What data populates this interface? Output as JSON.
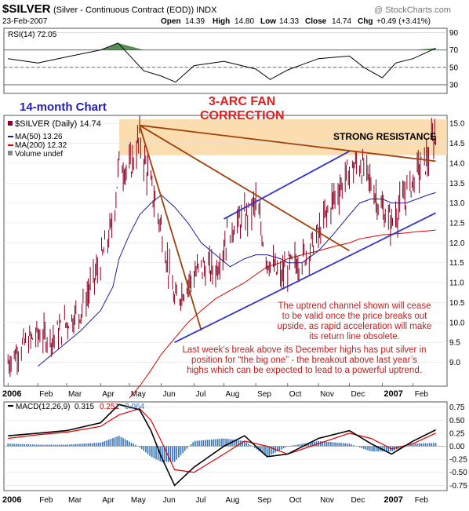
{
  "header": {
    "symbol": "$SILVER",
    "description": "(Silver - Continuous Contract (EOD)) INDX",
    "watermark": "@ StockCharts.com",
    "date": "23-Feb-2007",
    "open_label": "Open",
    "open": "14.39",
    "high_label": "High",
    "high": "14.80",
    "low_label": "Low",
    "low": "14.33",
    "close_label": "Close",
    "close": "14.74",
    "chg_label": "Chg",
    "chg": "+0.49 (+3.41%)"
  },
  "rsi": {
    "label": "RSI(14) 72.05",
    "ticks": [
      "90",
      "70",
      "50",
      "30"
    ],
    "overbought": 70,
    "oversold": 30,
    "ylim": [
      20,
      95
    ]
  },
  "price_legend": {
    "series": "$SILVER (Daily) 14.74",
    "ma50": "MA(50) 13.26",
    "ma200": "MA(200) 12.32",
    "volume": "Volume undef"
  },
  "annotations": {
    "chart_label": "14-month Chart",
    "fan_title_1": "3-ARC FAN",
    "fan_title_2": "CORRECTION",
    "resistance": "STRONG RESISTANCE",
    "channel_note": [
      "The uptrend channel shown will cease",
      "to be valid once the price breaks out",
      "upside, as rapid acceleration will make",
      "its return line obsolete."
    ],
    "breakout_note": [
      "Last week’s break above its December highs has put silver in",
      "position for “the big one” - the breakout above last year’s",
      "highs which can be expected to lead to a powerful uptrend."
    ]
  },
  "macd": {
    "label_prefix": "MACD(12,26,9)",
    "macd_val": "0.315",
    "signal_val": "0.251",
    "hist_val": "0.064",
    "ticks": [
      "0.75",
      "0.50",
      "0.25",
      "0.00",
      "-0.25",
      "-0.50",
      "-0.75"
    ],
    "ylim": [
      -0.85,
      0.85
    ]
  },
  "x_axis": {
    "labels": [
      "2006",
      "Feb",
      "Mar",
      "Apr",
      "May",
      "Jun",
      "Jul",
      "Aug",
      "Sep",
      "Oct",
      "Nov",
      "Dec",
      "2007",
      "Feb"
    ]
  },
  "colors": {
    "price": "#8b0020",
    "ma50": "#1a1aa0",
    "ma200": "#e00000",
    "channel": "#3333cc",
    "fan": "#a0400a",
    "resistance_band": "#fbd9a6",
    "annotation_text": "#c02020",
    "title_text": "#e02020",
    "label_blue": "#2020c0",
    "macd_hist": "#3070c0"
  },
  "chart_data": [
    {
      "type": "line",
      "name": "RSI(14)",
      "x": [
        "2006-01-03",
        "2006-02-01",
        "2006-03-01",
        "2006-04-03",
        "2006-04-20",
        "2006-05-15",
        "2006-06-01",
        "2006-06-15",
        "2006-07-03",
        "2006-08-01",
        "2006-09-01",
        "2006-09-15",
        "2006-10-02",
        "2006-11-01",
        "2006-12-01",
        "2006-12-15",
        "2007-01-02",
        "2007-01-15",
        "2007-02-01",
        "2007-02-23"
      ],
      "y": [
        60,
        55,
        62,
        70,
        78,
        46,
        40,
        33,
        52,
        57,
        48,
        36,
        47,
        60,
        63,
        50,
        38,
        55,
        60,
        72.05
      ],
      "ylim": [
        20,
        95
      ]
    },
    {
      "type": "line",
      "title": "$SILVER (Daily) 14.74",
      "x": [
        "2006-01-03",
        "2006-01-16",
        "2006-02-01",
        "2006-02-15",
        "2006-03-01",
        "2006-03-15",
        "2006-04-03",
        "2006-04-15",
        "2006-04-21",
        "2006-05-01",
        "2006-05-11",
        "2006-05-22",
        "2006-06-01",
        "2006-06-14",
        "2006-06-27",
        "2006-07-10",
        "2006-07-24",
        "2006-08-07",
        "2006-08-21",
        "2006-09-01",
        "2006-09-12",
        "2006-09-25",
        "2006-10-02",
        "2006-10-16",
        "2006-11-01",
        "2006-11-15",
        "2006-12-01",
        "2006-12-11",
        "2006-12-22",
        "2007-01-02",
        "2007-01-11",
        "2007-01-25",
        "2007-02-05",
        "2007-02-15",
        "2007-02-23"
      ],
      "series": [
        {
          "name": "$SILVER",
          "values": [
            9.0,
            9.4,
            9.7,
            9.6,
            10.0,
            10.3,
            11.5,
            12.5,
            14.0,
            13.8,
            14.6,
            13.4,
            12.4,
            10.5,
            11.0,
            11.4,
            11.3,
            12.4,
            12.6,
            13.0,
            11.6,
            11.1,
            11.4,
            11.6,
            12.2,
            13.1,
            13.8,
            14.0,
            13.5,
            12.8,
            12.5,
            13.2,
            13.8,
            14.1,
            14.74
          ]
        },
        {
          "name": "MA(50)",
          "values": [
            null,
            null,
            8.9,
            9.2,
            9.5,
            9.8,
            10.3,
            10.9,
            11.6,
            12.2,
            12.7,
            13.0,
            13.2,
            12.9,
            12.5,
            12.0,
            11.7,
            11.4,
            11.6,
            11.7,
            11.7,
            11.6,
            11.5,
            11.5,
            11.8,
            12.2,
            12.7,
            13.0,
            13.1,
            13.1,
            13.0,
            13.0,
            13.1,
            13.2,
            13.26
          ]
        },
        {
          "name": "MA(200)",
          "values": [
            null,
            null,
            null,
            null,
            null,
            null,
            null,
            null,
            null,
            8.1,
            8.4,
            8.8,
            9.2,
            9.6,
            10.0,
            10.3,
            10.6,
            10.8,
            11.0,
            11.2,
            11.4,
            11.5,
            11.6,
            11.7,
            11.8,
            11.9,
            12.0,
            12.1,
            12.15,
            12.2,
            12.22,
            12.25,
            12.28,
            12.3,
            12.32
          ]
        }
      ],
      "ylim": [
        8.4,
        15.2
      ],
      "y_ticks": [
        9.0,
        9.5,
        10.0,
        10.5,
        11.0,
        11.5,
        12.0,
        12.5,
        13.0,
        13.5,
        14.0,
        14.5,
        15.0
      ],
      "resistance_band": [
        14.2,
        15.1
      ],
      "trendlines": [
        {
          "name": "fan-line-1",
          "from": [
            "2006-05-11",
            14.95
          ],
          "to": [
            "2006-07-10",
            9.8
          ]
        },
        {
          "name": "fan-line-2",
          "from": [
            "2006-05-11",
            14.95
          ],
          "to": [
            "2006-12-01",
            11.8
          ]
        },
        {
          "name": "fan-line-3",
          "from": [
            "2006-05-11",
            14.95
          ],
          "to": [
            "2007-02-23",
            14.05
          ]
        },
        {
          "name": "channel-lower",
          "from": [
            "2006-06-14",
            9.5
          ],
          "to": [
            "2007-02-23",
            12.75
          ]
        },
        {
          "name": "channel-upper",
          "from": [
            "2006-08-01",
            12.6
          ],
          "to": [
            "2006-12-01",
            14.3
          ]
        }
      ]
    },
    {
      "type": "line",
      "x": [
        "2006-01-03",
        "2006-02-01",
        "2006-03-01",
        "2006-04-03",
        "2006-04-21",
        "2006-05-11",
        "2006-05-22",
        "2006-06-01",
        "2006-06-14",
        "2006-07-03",
        "2006-08-01",
        "2006-08-21",
        "2006-09-12",
        "2006-10-02",
        "2006-11-01",
        "2006-12-01",
        "2006-12-22",
        "2007-01-11",
        "2007-02-01",
        "2007-02-23"
      ],
      "series": [
        {
          "name": "MACD(12,26,9)",
          "values": [
            0.2,
            0.25,
            0.3,
            0.45,
            0.8,
            0.7,
            0.3,
            -0.2,
            -0.75,
            -0.4,
            0.0,
            0.2,
            -0.2,
            -0.15,
            0.15,
            0.3,
            0.05,
            -0.15,
            0.1,
            0.315
          ]
        },
        {
          "name": "Signal",
          "values": [
            0.15,
            0.22,
            0.27,
            0.38,
            0.6,
            0.72,
            0.5,
            0.1,
            -0.45,
            -0.5,
            -0.15,
            0.1,
            0.0,
            -0.15,
            0.05,
            0.25,
            0.15,
            -0.05,
            0.05,
            0.251
          ]
        }
      ],
      "ylim": [
        -0.85,
        0.85
      ]
    }
  ]
}
